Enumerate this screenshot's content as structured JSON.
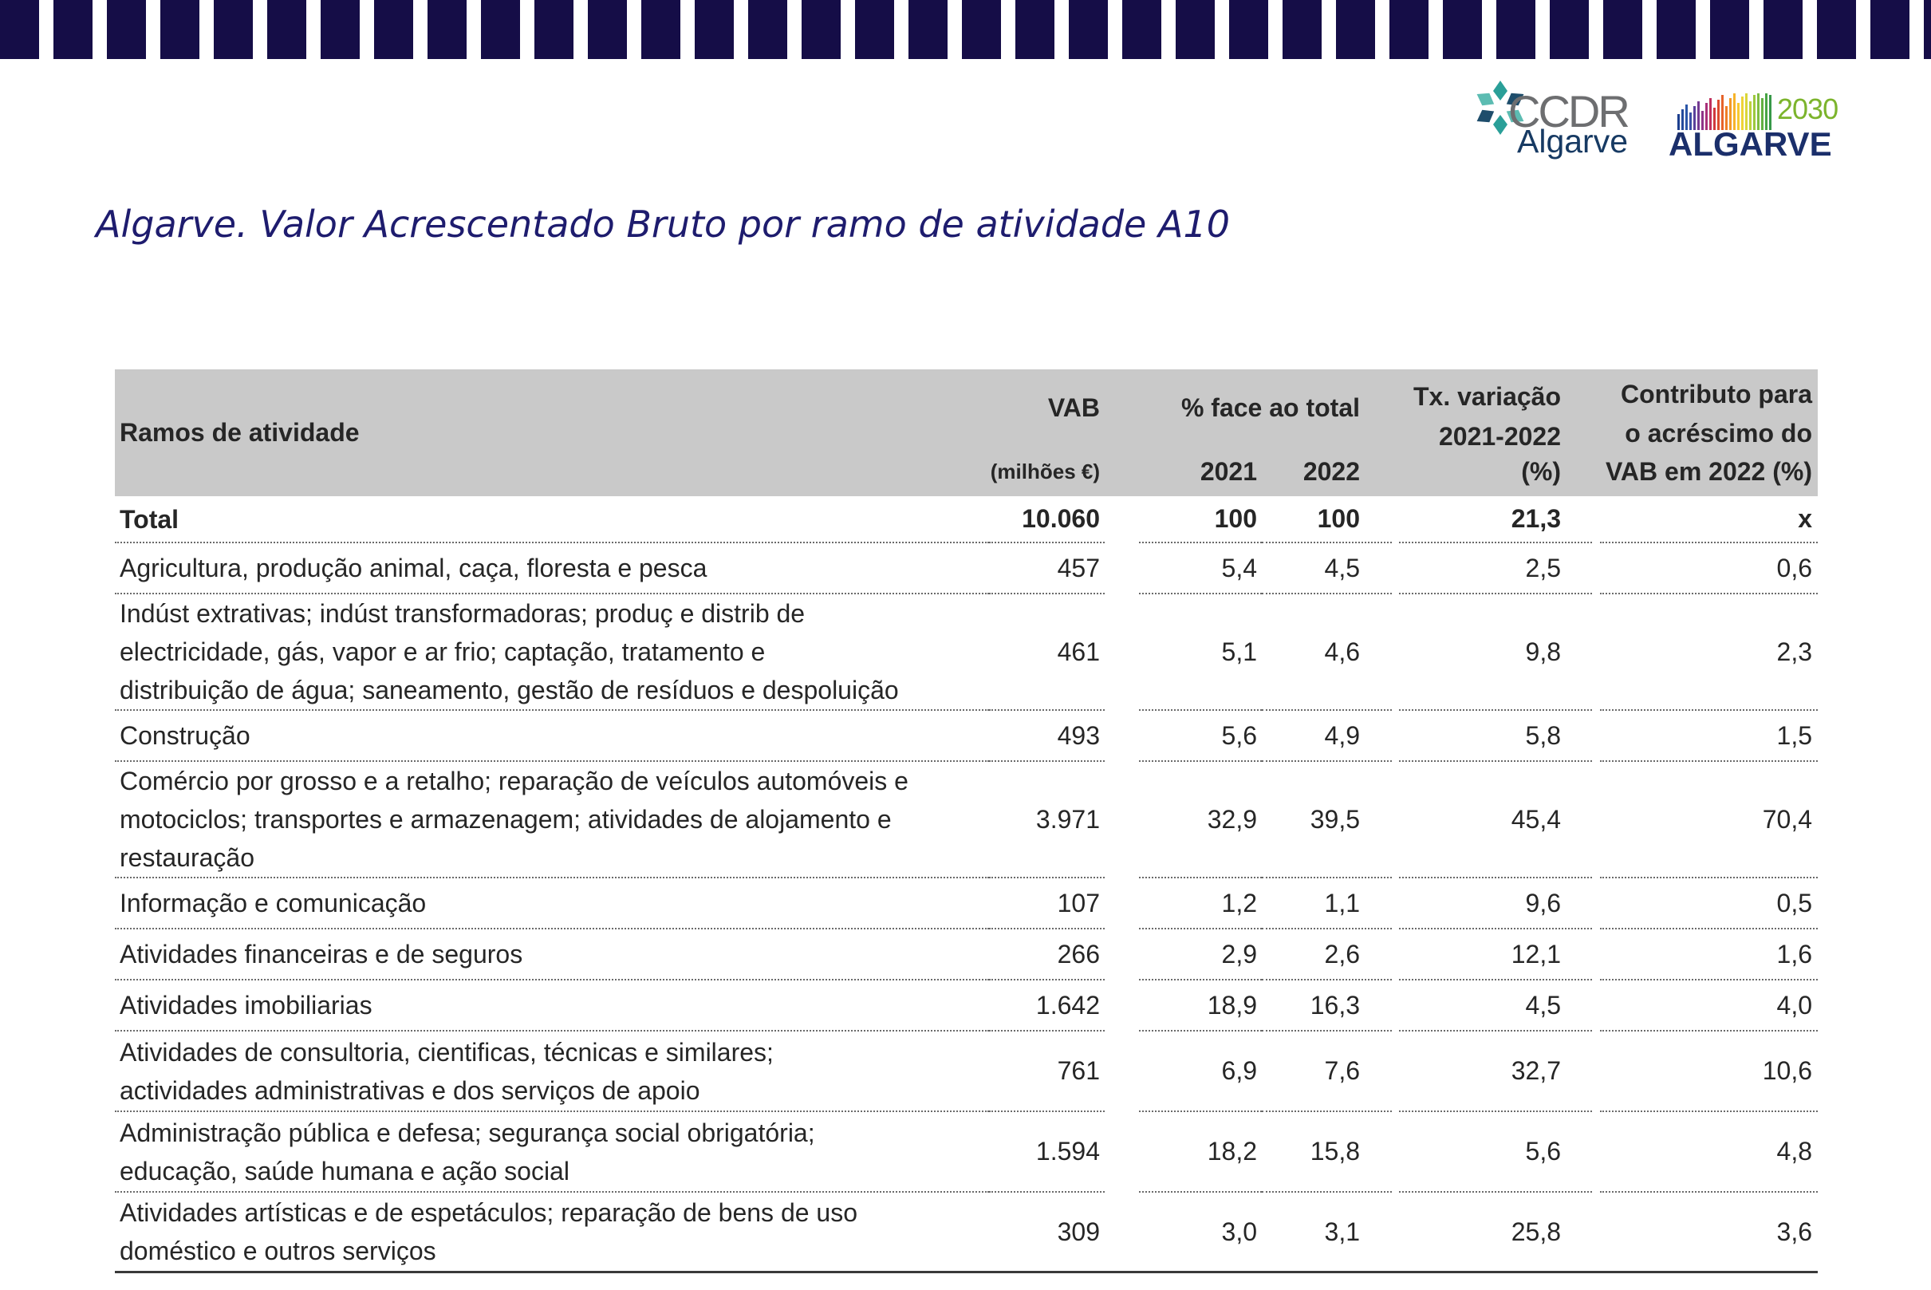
{
  "title": "Algarve. Valor Acrescentado Bruto por ramo de atividade A10",
  "logos": {
    "ccdr": {
      "line1": "CCDR",
      "line2": "Algarve",
      "icon": "ccdr-flower-icon"
    },
    "algarve2030": {
      "year": "2030",
      "name": "ALGARVE",
      "icon": "color-bars-icon"
    }
  },
  "colors": {
    "band": "#150d47",
    "title": "#1e1c6e",
    "header_background": "#c9c9c9",
    "ccdr_gray": "#6d6e70",
    "ccdr_navy": "#173a63",
    "algarve_green": "#7cb42c",
    "algarve_navy": "#1b2f6b"
  },
  "table": {
    "header": {
      "activity": "Ramos de atividade",
      "vab": "VAB",
      "vab_unit": "(milhões €)",
      "share": "% face ao total",
      "year_2021": "2021",
      "year_2022": "2022",
      "change_line1": "Tx. variação",
      "change_line2": "2021-2022",
      "change_line3": "(%)",
      "contrib_line1": "Contributo para",
      "contrib_line2": "o acréscimo do",
      "contrib_line3": "VAB em 2022 (%)"
    },
    "rows": [
      {
        "label_lines": [
          "Total"
        ],
        "vab": "10.060",
        "share_2021": "100",
        "share_2022": "100",
        "change": "21,3",
        "contribution": "x"
      },
      {
        "label_lines": [
          "Agricultura, produção animal, caça, floresta e pesca"
        ],
        "vab": "457",
        "share_2021": "5,4",
        "share_2022": "4,5",
        "change": "2,5",
        "contribution": "0,6"
      },
      {
        "label_lines": [
          "Indúst extrativas; indúst transformadoras; produç e distrib de",
          "electricidade, gás, vapor e ar frio; captação, tratamento e",
          "distribuição de água; saneamento, gestão de resíduos e despoluição"
        ],
        "vab": "461",
        "share_2021": "5,1",
        "share_2022": "4,6",
        "change": "9,8",
        "contribution": "2,3"
      },
      {
        "label_lines": [
          "Construção"
        ],
        "vab": "493",
        "share_2021": "5,6",
        "share_2022": "4,9",
        "change": "5,8",
        "contribution": "1,5"
      },
      {
        "label_lines": [
          "Comércio por grosso e a retalho; reparação de veículos automóveis e",
          "motociclos; transportes e armazenagem; atividades de alojamento e",
          "restauração"
        ],
        "vab": "3.971",
        "share_2021": "32,9",
        "share_2022": "39,5",
        "change": "45,4",
        "contribution": "70,4"
      },
      {
        "label_lines": [
          "Informação e comunicação"
        ],
        "vab": "107",
        "share_2021": "1,2",
        "share_2022": "1,1",
        "change": "9,6",
        "contribution": "0,5"
      },
      {
        "label_lines": [
          "Atividades financeiras e de seguros"
        ],
        "vab": "266",
        "share_2021": "2,9",
        "share_2022": "2,6",
        "change": "12,1",
        "contribution": "1,6"
      },
      {
        "label_lines": [
          "Atividades imobiliarias"
        ],
        "vab": "1.642",
        "share_2021": "18,9",
        "share_2022": "16,3",
        "change": "4,5",
        "contribution": "4,0"
      },
      {
        "label_lines": [
          "Atividades de consultoria, cientificas, técnicas e similares;",
          "actividades administrativas e dos serviços de apoio"
        ],
        "vab": "761",
        "share_2021": "6,9",
        "share_2022": "7,6",
        "change": "32,7",
        "contribution": "10,6"
      },
      {
        "label_lines": [
          "Administração pública e defesa; segurança social obrigatória;",
          "educação, saúde humana e ação social"
        ],
        "vab": "1.594",
        "share_2021": "18,2",
        "share_2022": "15,8",
        "change": "5,6",
        "contribution": "4,8"
      },
      {
        "label_lines": [
          "Atividades artísticas e de espetáculos; reparação de bens de uso",
          "doméstico e outros serviços"
        ],
        "vab": "309",
        "share_2021": "3,0",
        "share_2022": "3,1",
        "change": "25,8",
        "contribution": "3,6"
      }
    ]
  }
}
